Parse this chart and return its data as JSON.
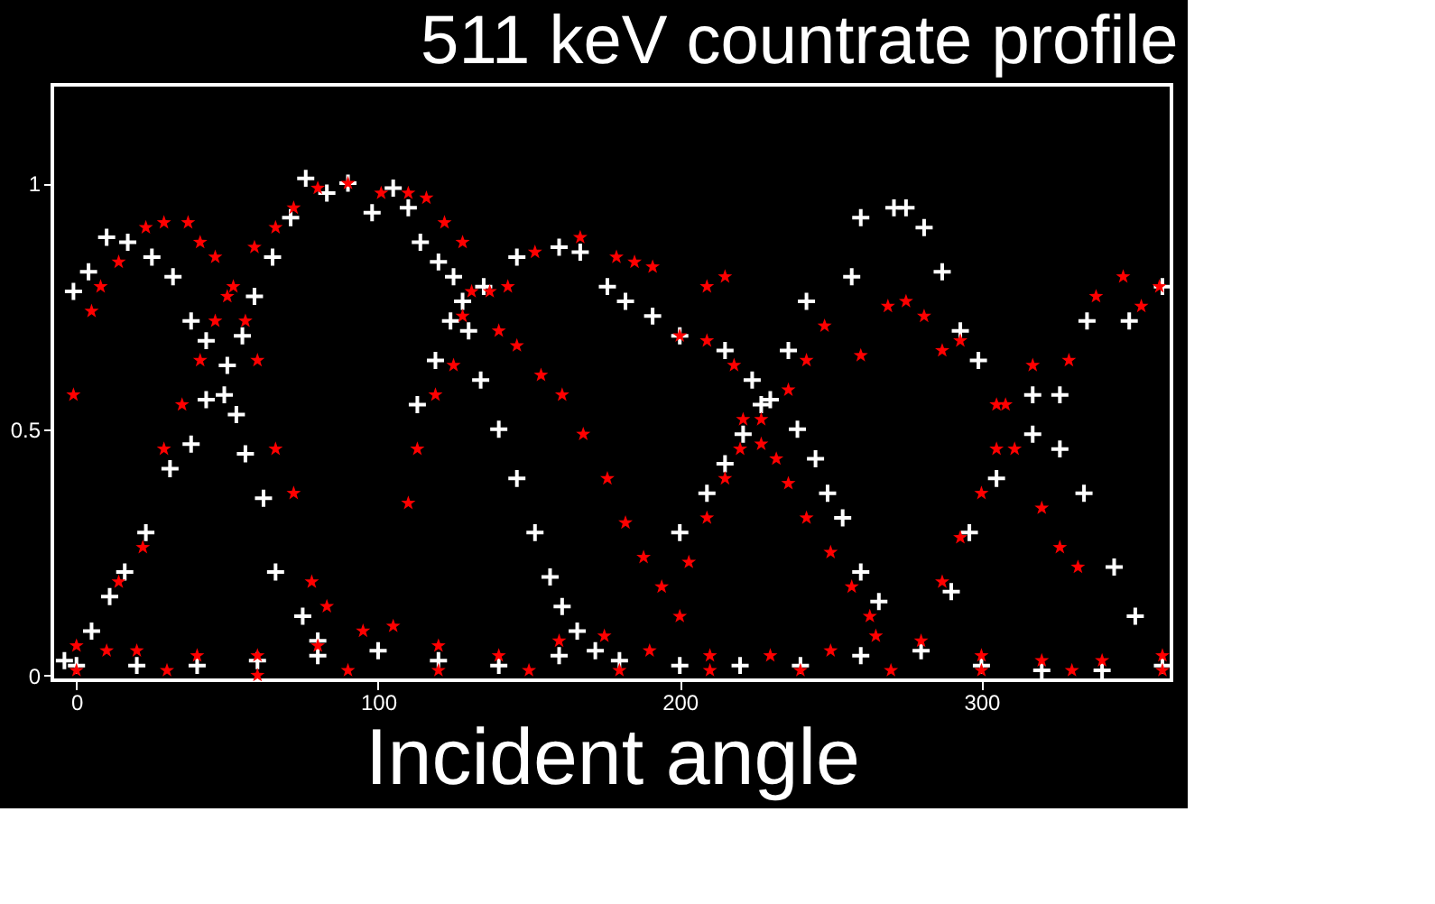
{
  "chart_data": {
    "type": "scatter",
    "title": "511 keV countrate profile",
    "xlabel": "Incident angle",
    "xlim": [
      -8,
      363
    ],
    "ylim": [
      -0.01,
      1.2
    ],
    "xticks": [
      0,
      100,
      200,
      300
    ],
    "yticks": [
      0,
      0.5,
      1
    ],
    "grid": false,
    "series": [
      {
        "color": "#ffffff",
        "marker": "cross",
        "x": [
          -1,
          4,
          10,
          17,
          25,
          32,
          38,
          43,
          49,
          53,
          56,
          62,
          66,
          75,
          80,
          -4,
          5,
          11,
          16,
          23,
          31,
          38,
          43,
          50,
          55,
          59,
          65,
          71,
          76,
          83,
          90,
          98,
          105,
          110,
          114,
          120,
          125,
          130,
          134,
          140,
          146,
          152,
          157,
          161,
          166,
          172,
          113,
          119,
          124,
          128,
          135,
          146,
          160,
          167,
          176,
          182,
          191,
          200,
          215,
          224,
          230,
          239,
          245,
          249,
          254,
          260,
          266,
          200,
          209,
          215,
          221,
          227,
          236,
          242,
          257,
          260,
          271,
          275,
          281,
          287,
          293,
          299,
          317,
          326,
          334,
          344,
          351,
          290,
          296,
          305,
          317,
          326,
          335,
          349,
          360,
          0,
          20,
          40,
          60,
          80,
          100,
          120,
          140,
          160,
          180,
          200,
          220,
          240,
          260,
          280,
          300,
          320,
          340,
          360
        ],
        "values": [
          0.78,
          0.82,
          0.89,
          0.88,
          0.85,
          0.81,
          0.72,
          0.68,
          0.57,
          0.53,
          0.45,
          0.36,
          0.21,
          0.12,
          0.07,
          0.03,
          0.09,
          0.16,
          0.21,
          0.29,
          0.42,
          0.47,
          0.56,
          0.63,
          0.69,
          0.77,
          0.85,
          0.93,
          1.01,
          0.98,
          1.0,
          0.94,
          0.99,
          0.95,
          0.88,
          0.84,
          0.81,
          0.7,
          0.6,
          0.5,
          0.4,
          0.29,
          0.2,
          0.14,
          0.09,
          0.05,
          0.55,
          0.64,
          0.72,
          0.76,
          0.79,
          0.85,
          0.87,
          0.86,
          0.79,
          0.76,
          0.73,
          0.69,
          0.66,
          0.6,
          0.56,
          0.5,
          0.44,
          0.37,
          0.32,
          0.21,
          0.15,
          0.29,
          0.37,
          0.43,
          0.49,
          0.55,
          0.66,
          0.76,
          0.81,
          0.93,
          0.95,
          0.95,
          0.91,
          0.82,
          0.7,
          0.64,
          0.57,
          0.46,
          0.37,
          0.22,
          0.12,
          0.17,
          0.29,
          0.4,
          0.49,
          0.57,
          0.72,
          0.72,
          0.79,
          0.02,
          0.02,
          0.02,
          0.03,
          0.04,
          0.05,
          0.03,
          0.02,
          0.04,
          0.03,
          0.02,
          0.02,
          0.02,
          0.04,
          0.05,
          0.02,
          0.01,
          0.01,
          0.02
        ]
      },
      {
        "color": "#ff0000",
        "marker": "star",
        "x": [
          -1,
          5,
          8,
          14,
          23,
          29,
          37,
          41,
          46,
          50,
          56,
          60,
          66,
          72,
          78,
          83,
          14,
          22,
          29,
          35,
          41,
          46,
          52,
          59,
          66,
          72,
          80,
          90,
          101,
          110,
          116,
          122,
          128,
          131,
          140,
          146,
          154,
          161,
          168,
          176,
          182,
          188,
          194,
          200,
          110,
          113,
          119,
          125,
          128,
          137,
          143,
          152,
          167,
          179,
          185,
          191,
          200,
          209,
          218,
          221,
          227,
          236,
          242,
          250,
          257,
          263,
          203,
          209,
          215,
          220,
          227,
          236,
          242,
          248,
          260,
          269,
          275,
          281,
          287,
          293,
          305,
          311,
          320,
          326,
          332,
          287,
          293,
          300,
          305,
          308,
          317,
          329,
          338,
          347,
          353,
          359,
          209,
          215,
          232,
          0,
          10,
          20,
          40,
          60,
          80,
          95,
          105,
          120,
          140,
          160,
          175,
          190,
          210,
          230,
          250,
          265,
          280,
          300,
          320,
          340,
          360,
          0,
          30,
          60,
          90,
          120,
          150,
          180,
          210,
          240,
          270,
          300,
          330,
          360
        ],
        "values": [
          0.57,
          0.74,
          0.79,
          0.84,
          0.91,
          0.92,
          0.92,
          0.88,
          0.85,
          0.77,
          0.72,
          0.64,
          0.46,
          0.37,
          0.19,
          0.14,
          0.19,
          0.26,
          0.46,
          0.55,
          0.64,
          0.72,
          0.79,
          0.87,
          0.91,
          0.95,
          0.99,
          1.0,
          0.98,
          0.98,
          0.97,
          0.92,
          0.88,
          0.78,
          0.7,
          0.67,
          0.61,
          0.57,
          0.49,
          0.4,
          0.31,
          0.24,
          0.18,
          0.12,
          0.35,
          0.46,
          0.57,
          0.63,
          0.73,
          0.78,
          0.79,
          0.86,
          0.89,
          0.85,
          0.84,
          0.83,
          0.69,
          0.68,
          0.63,
          0.52,
          0.47,
          0.39,
          0.32,
          0.25,
          0.18,
          0.12,
          0.23,
          0.32,
          0.4,
          0.46,
          0.52,
          0.58,
          0.64,
          0.71,
          0.65,
          0.75,
          0.76,
          0.73,
          0.66,
          0.68,
          0.55,
          0.46,
          0.34,
          0.26,
          0.22,
          0.19,
          0.28,
          0.37,
          0.46,
          0.55,
          0.63,
          0.64,
          0.77,
          0.81,
          0.75,
          0.79,
          0.79,
          0.81,
          0.44,
          0.06,
          0.05,
          0.05,
          0.04,
          0.04,
          0.06,
          0.09,
          0.1,
          0.06,
          0.04,
          0.07,
          0.08,
          0.05,
          0.04,
          0.04,
          0.05,
          0.08,
          0.07,
          0.04,
          0.03,
          0.03,
          0.04,
          0.01,
          0.01,
          0.0,
          0.01,
          0.01,
          0.01,
          0.01,
          0.01,
          0.01,
          0.01,
          0.01,
          0.01,
          0.01
        ]
      }
    ]
  }
}
